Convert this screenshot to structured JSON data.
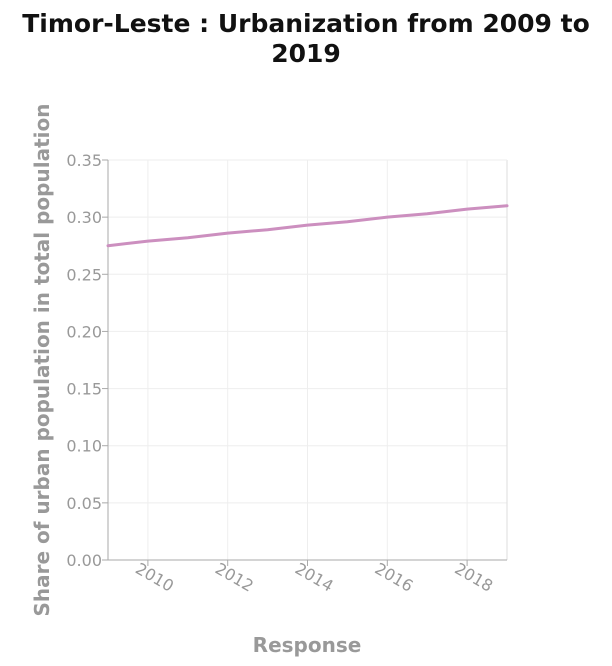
{
  "chart_data": {
    "type": "line",
    "title_lines": [
      "Timor-Leste : Urbanization from 2009 to",
      "2019"
    ],
    "xlabel": "Response",
    "ylabel": "Share of urban population in total population",
    "x": [
      2009,
      2010,
      2011,
      2012,
      2013,
      2014,
      2015,
      2016,
      2017,
      2018,
      2019
    ],
    "series": [
      {
        "values": [
          0.275,
          0.279,
          0.282,
          0.286,
          0.289,
          0.293,
          0.296,
          0.3,
          0.303,
          0.307,
          0.31
        ],
        "color": "#cc8fbf"
      }
    ],
    "xlim": [
      2009,
      2019
    ],
    "ylim": [
      0,
      0.35
    ],
    "x_ticks": [
      2010,
      2012,
      2014,
      2016,
      2018
    ],
    "x_tick_labels": [
      "2010",
      "2012",
      "2014",
      "2016",
      "2018"
    ],
    "y_ticks": [
      0,
      0.05,
      0.1,
      0.15,
      0.2,
      0.25,
      0.3,
      0.35
    ],
    "y_tick_labels": [
      "0.00",
      "0.05",
      "0.10",
      "0.15",
      "0.20",
      "0.25",
      "0.30",
      "0.35"
    ],
    "grid": true,
    "legend": "none"
  }
}
